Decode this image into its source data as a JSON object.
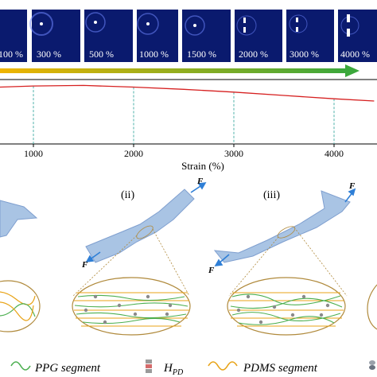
{
  "saxs_panel": {
    "strain_labels": [
      "100 %",
      "300 %",
      "500 %",
      "1000 %",
      "1500 %",
      "2000 %",
      "3000 %",
      "4000 %"
    ],
    "background_color": "#0a1a6e",
    "arrow_color_start": "#f0b400",
    "arrow_color_end": "#3ca83c"
  },
  "chart": {
    "x_axis_label": "Strain (%)",
    "x_tick_labels": [
      "1000",
      "2000",
      "3000",
      "4000"
    ],
    "curve_color": "#d62020",
    "guide_line_color": "#3aa8a0"
  },
  "chart_data": {
    "type": "line",
    "xlabel": "Strain (%)",
    "ylabel": "",
    "x_ticks": [
      1000,
      2000,
      3000,
      4000
    ],
    "xlim": [
      0,
      4400
    ],
    "series": [
      {
        "x": [
          0,
          500,
          1000,
          1500,
          2000,
          2500,
          3000,
          3500,
          4000,
          4400
        ],
        "y": [
          0.94,
          0.97,
          0.985,
          0.99,
          0.975,
          0.955,
          0.93,
          0.9,
          0.87,
          0.85
        ]
      }
    ],
    "grid": false
  },
  "schematic": {
    "stage_labels": [
      "(ii)",
      "(iii)"
    ],
    "force_label": "F",
    "specimen_color": "#a9c4e4",
    "ppg_color": "#4caf50",
    "pdms_color": "#e8a317",
    "hpd_color": "#8a8a8a"
  },
  "legend": {
    "ppg": "PPG segment",
    "hpd_main": "H",
    "hpd_sub": "PD",
    "pdms": "PDMS segment"
  }
}
